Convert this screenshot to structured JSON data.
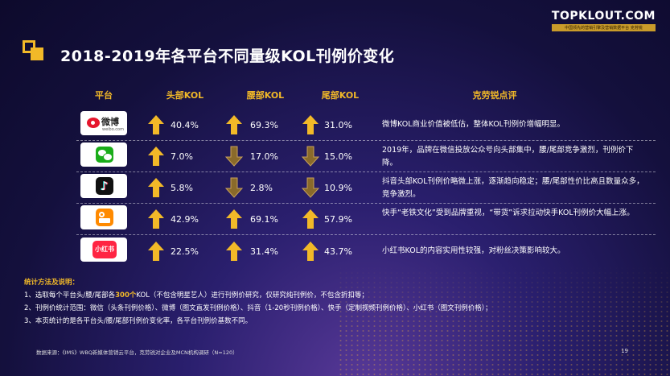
{
  "header": {
    "title": "2018-2019年各平台不同量级KOL刊例价变化",
    "brand_name": "TOPKLOUT.COM",
    "brand_sub": "中国领先的营销引擎及营销数据平台 克劳锐"
  },
  "table": {
    "col_platform": "平台",
    "col_head": "头部KOL",
    "col_waist": "腰部KOL",
    "col_tail": "尾部KOL",
    "col_comment": "克劳锐点评",
    "rows": [
      {
        "platform": "weibo",
        "logo_text": "微博",
        "logo_sub": "weibo.com",
        "head": "40.4%",
        "head_dir": "up",
        "waist": "69.3%",
        "waist_dir": "up",
        "tail": "31.0%",
        "tail_dir": "up",
        "comment": "微博KOL商业价值被低估，整体KOL刊例价增幅明显。"
      },
      {
        "platform": "wechat",
        "logo_text": "",
        "logo_sub": "",
        "head": "7.0%",
        "head_dir": "up",
        "waist": "17.0%",
        "waist_dir": "down",
        "tail": "15.0%",
        "tail_dir": "down",
        "comment": "2019年，品牌在微信投放公众号向头部集中，腰/尾部竞争激烈，刊例价下降。"
      },
      {
        "platform": "douyin",
        "logo_text": "",
        "logo_sub": "",
        "head": "5.8%",
        "head_dir": "up",
        "waist": "2.8%",
        "waist_dir": "down",
        "tail": "10.9%",
        "tail_dir": "down",
        "comment": "抖音头部KOL刊例价略微上涨，逐渐趋向稳定；腰/尾部性价比高且数量众多，竞争激烈。"
      },
      {
        "platform": "kuaishou",
        "logo_text": "",
        "logo_sub": "",
        "head": "42.9%",
        "head_dir": "up",
        "waist": "69.1%",
        "waist_dir": "up",
        "tail": "57.9%",
        "tail_dir": "up",
        "comment": "快手“老铁文化”受到品牌重视，“带货”诉求拉动快手KOL刊例价大幅上涨。"
      },
      {
        "platform": "xiaohongshu",
        "logo_text": "小红书",
        "logo_sub": "",
        "head": "22.5%",
        "head_dir": "up",
        "waist": "31.4%",
        "waist_dir": "up",
        "tail": "43.7%",
        "tail_dir": "up",
        "comment": "小红书KOL的内容实用性较强，对粉丝决策影响较大。"
      }
    ]
  },
  "notes": {
    "title": "统计方法及说明：",
    "line1_pre": "1、选取每个平台头/腰/尾部各",
    "line1_hl": "300个",
    "line1_post": "KOL（不包含明星艺人）进行刊例价研究，仅研究纯刊例价，不包含折扣等；",
    "line2": "2、刊例价统计范围：微信（头条刊例价格）、微博（图文直发刊例价格）、抖音（1-20秒刊例价格）、快手（定制视频刊例价格）、小红书（图文刊例价格）；",
    "line3": "3、本页统计的是各平台头/腰/尾部刊例价变化率，各平台刊例价基数不同。"
  },
  "footer": {
    "source": "数据来源：《IMS》WBQ新媒体营销云平台，克劳锐对企业及MCN机构调研（N=120）",
    "page": "19"
  },
  "colors": {
    "accent": "#f2b928",
    "up": "#f2b928",
    "down": "#8a6a2a"
  }
}
